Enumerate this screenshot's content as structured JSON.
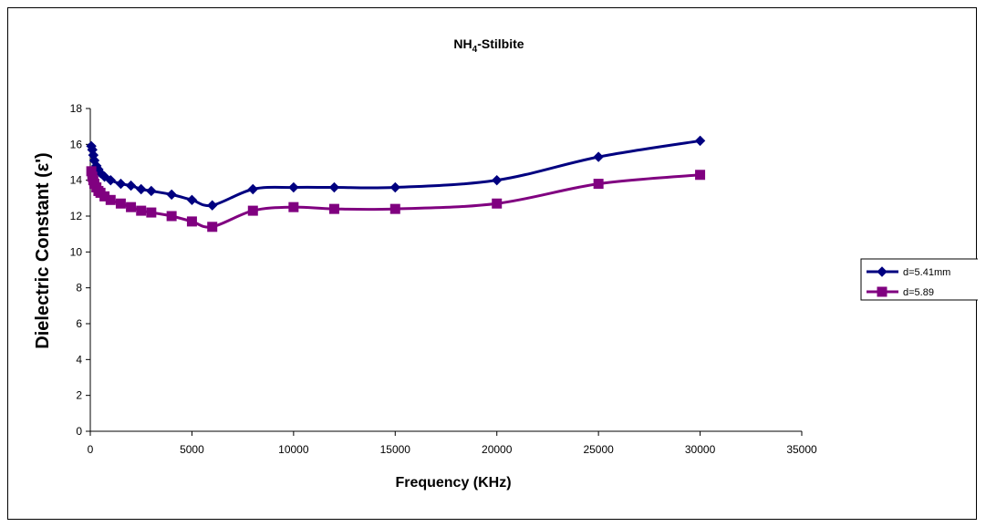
{
  "chart_data": {
    "type": "line",
    "title_main": "NH",
    "title_sub": "4",
    "title_rest": "-Stilbite",
    "xlabel": "Frequency (KHz)",
    "ylabel": "Dielectric Constant (ε')",
    "xlim": [
      0,
      35000
    ],
    "ylim": [
      0,
      18
    ],
    "x_ticks": [
      "0",
      "5000",
      "10000",
      "15000",
      "20000",
      "25000",
      "30000",
      "35000"
    ],
    "y_ticks": [
      "0",
      "2",
      "4",
      "6",
      "8",
      "10",
      "12",
      "14",
      "16",
      "18"
    ],
    "grid": false,
    "legend_position": "right",
    "series": [
      {
        "name": "d=5.41mm",
        "color": "#000080",
        "marker": "diamond",
        "x": [
          50,
          100,
          150,
          200,
          300,
          400,
          500,
          700,
          1000,
          1500,
          2000,
          2500,
          3000,
          4000,
          5000,
          6000,
          8000,
          10000,
          12000,
          15000,
          20000,
          25000,
          30000
        ],
        "y": [
          15.9,
          15.7,
          15.4,
          15.1,
          14.8,
          14.6,
          14.4,
          14.2,
          14.0,
          13.8,
          13.7,
          13.5,
          13.4,
          13.2,
          12.9,
          12.6,
          13.5,
          13.6,
          13.6,
          13.6,
          14.0,
          15.3,
          16.2
        ]
      },
      {
        "name": "d=5.89",
        "color": "#800080",
        "marker": "square",
        "x": [
          50,
          100,
          150,
          200,
          300,
          400,
          500,
          700,
          1000,
          1500,
          2000,
          2500,
          3000,
          4000,
          5000,
          6000,
          8000,
          10000,
          12000,
          15000,
          20000,
          25000,
          30000
        ],
        "y": [
          14.5,
          14.2,
          14.0,
          13.8,
          13.6,
          13.4,
          13.3,
          13.1,
          12.9,
          12.7,
          12.5,
          12.3,
          12.2,
          12.0,
          11.7,
          11.4,
          12.3,
          12.5,
          12.4,
          12.4,
          12.7,
          13.8,
          14.3
        ]
      }
    ]
  }
}
